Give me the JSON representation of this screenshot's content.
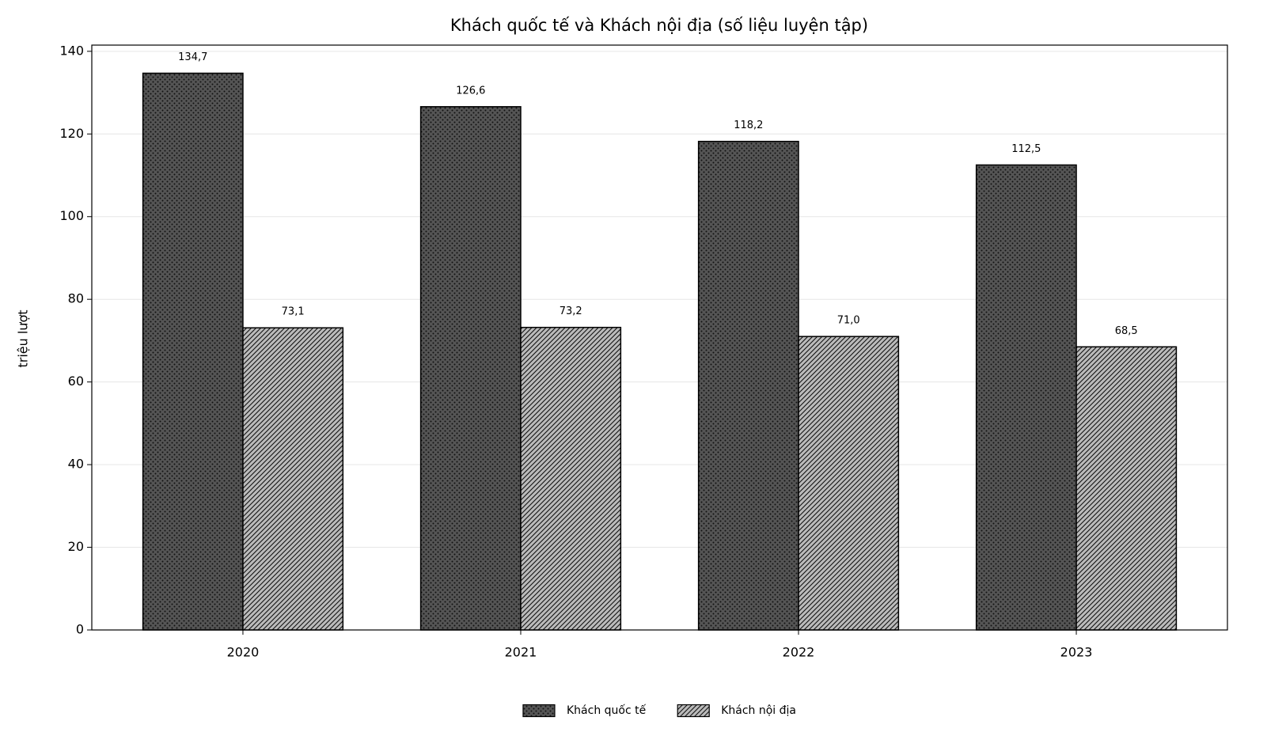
{
  "chart_data": {
    "type": "bar",
    "title": "Khách quốc tế và Khách nội địa (số liệu luyện tập)",
    "y_label": "triệu lượt",
    "categories": [
      "2020",
      "2021",
      "2022",
      "2023"
    ],
    "series": [
      {
        "name": "Khách quốc tế",
        "color": "#555555",
        "hatch": "dots",
        "values": [
          134.7,
          126.6,
          118.2,
          112.5
        ],
        "value_labels": [
          "134,7",
          "126,6",
          "118,2",
          "112,5"
        ]
      },
      {
        "name": "Khách nội địa",
        "color": "#bbbbbb",
        "hatch": "diagonal",
        "values": [
          73.1,
          73.2,
          71.0,
          68.5
        ],
        "value_labels": [
          "73,1",
          "73,2",
          "71,0",
          "68,5"
        ]
      }
    ],
    "ylim": [
      0,
      141.5
    ],
    "yticks": [
      0,
      20,
      40,
      60,
      80,
      100,
      120,
      140
    ],
    "grid": true,
    "legend": "bottom"
  }
}
